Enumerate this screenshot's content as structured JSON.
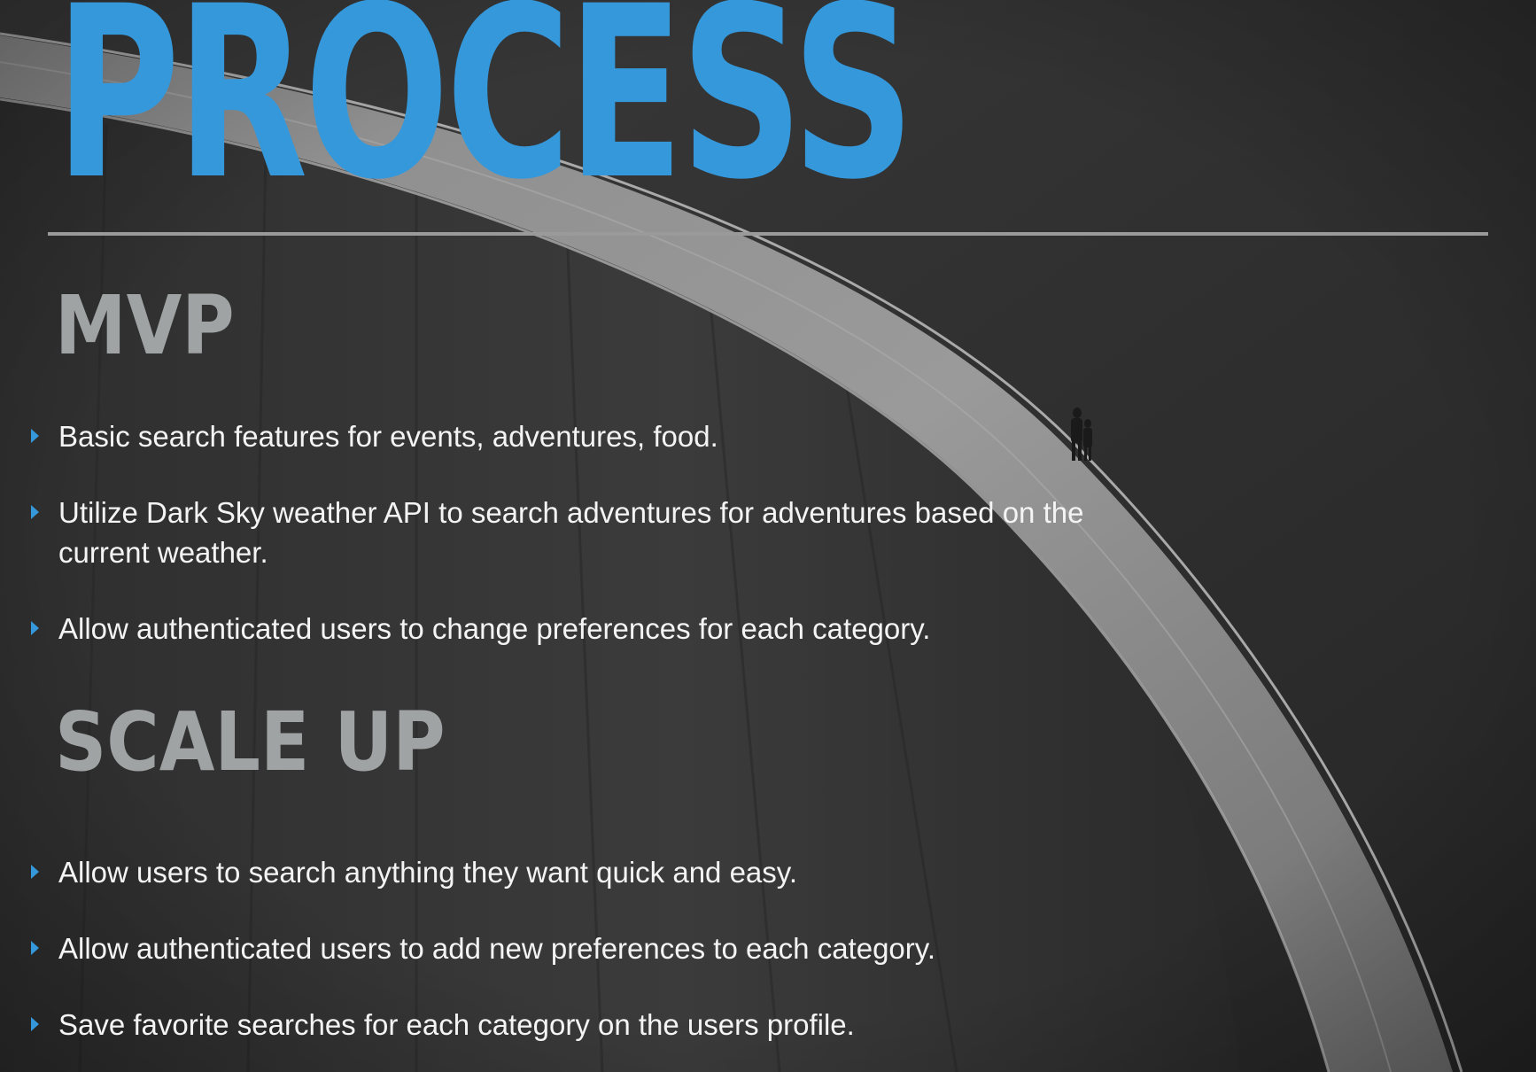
{
  "slide": {
    "title": "PROCESS",
    "accent_color": "#3598db",
    "heading_color": "#9fa3a3",
    "background_image": "black-and-white photo of a curved dam wall with walkway and two people, lake on the right"
  },
  "sections": [
    {
      "heading": "MVP",
      "bullets": [
        "Basic search features for events, adventures, food.",
        "Utilize Dark Sky weather API  to search adventures for adventures based on the current weather.",
        "Allow authenticated users to change preferences for each category."
      ]
    },
    {
      "heading": "SCALE UP",
      "bullets": [
        "Allow users to search anything they want quick and easy.",
        "Allow authenticated users to add new preferences to each category.",
        "Save favorite searches for each category on the users profile."
      ]
    }
  ]
}
